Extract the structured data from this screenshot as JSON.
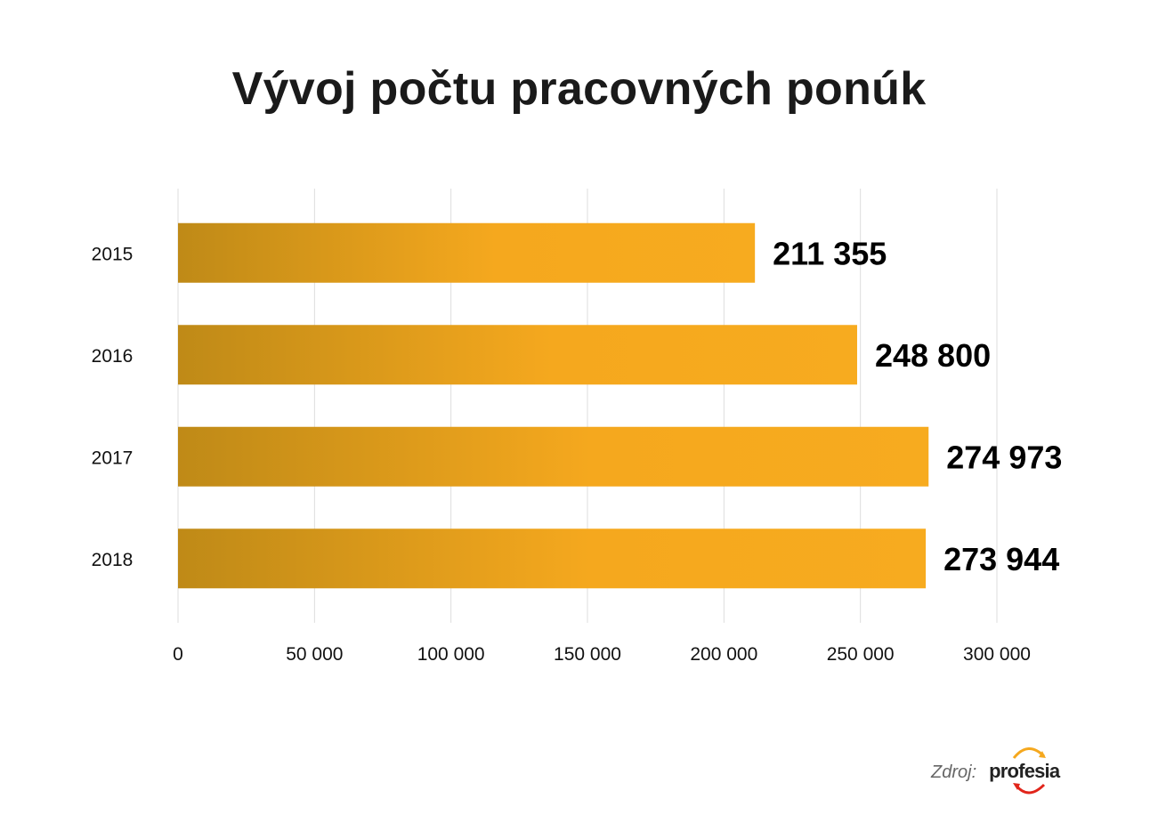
{
  "title": "Vývoj počtu pracovných ponúk",
  "source": {
    "label": "Zdroj:",
    "logo_text": "profesia"
  },
  "colors": {
    "bar_start": "#bf8a17",
    "bar_mid": "#f5a81e",
    "bar_end": "#f7ab1f",
    "grid": "#dddddd",
    "logo_arc_top": "#f5a81e",
    "logo_arc_bottom": "#e1251b"
  },
  "chart_data": {
    "type": "bar",
    "orientation": "horizontal",
    "title": "Vývoj počtu pracovných ponúk",
    "categories": [
      "2015",
      "2016",
      "2017",
      "2018"
    ],
    "values": [
      211355,
      248800,
      274973,
      273944
    ],
    "value_labels": [
      "211 355",
      "248 800",
      "274 973",
      "273 944"
    ],
    "xlim": [
      0,
      300000
    ],
    "xticks": [
      0,
      50000,
      100000,
      150000,
      200000,
      250000,
      300000
    ],
    "xtick_labels": [
      "0",
      "50 000",
      "100 000",
      "150 000",
      "200 000",
      "250 000",
      "300 000"
    ],
    "grid": "vertical",
    "legend": "none",
    "xlabel": "",
    "ylabel": ""
  }
}
